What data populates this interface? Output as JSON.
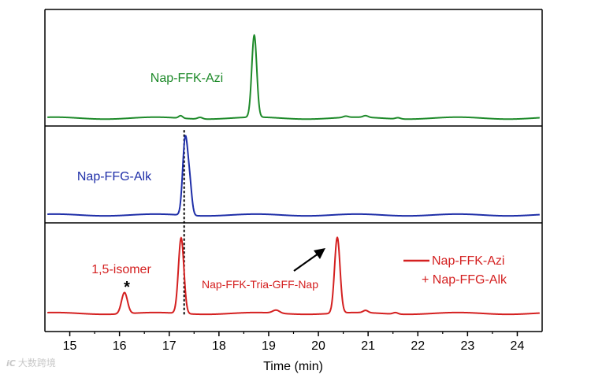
{
  "chart_data": {
    "type": "line",
    "title": "",
    "xlabel": "Time (min)",
    "ylabel": "",
    "xlim": [
      14.5,
      24.5
    ],
    "xticks": [
      "15",
      "16",
      "17",
      "18",
      "19",
      "20",
      "21",
      "22",
      "23",
      "24"
    ],
    "series": [
      {
        "name": "Nap-FFK-Azi",
        "label": "Nap-FFK-Azi",
        "color": "#1e8a2a",
        "panel": "top",
        "baseline": 0.0,
        "peaks": [
          {
            "x": 18.71,
            "height": 1.0,
            "width": 0.05
          },
          {
            "x": 17.23,
            "height": 0.03,
            "width": 0.04
          },
          {
            "x": 17.62,
            "height": 0.02,
            "width": 0.05
          },
          {
            "x": 20.55,
            "height": 0.015,
            "width": 0.05
          },
          {
            "x": 20.95,
            "height": 0.02,
            "width": 0.05
          },
          {
            "x": 21.6,
            "height": 0.015,
            "width": 0.05
          }
        ]
      },
      {
        "name": "Nap-FFG-Alk",
        "label": "Nap-FFG-Alk",
        "color": "#1f2fa8",
        "panel": "middle",
        "baseline": 0.0,
        "peaks": [
          {
            "x": 17.32,
            "height": 1.0,
            "width": 0.05
          },
          {
            "x": 17.41,
            "height": 0.4,
            "width": 0.045
          }
        ]
      },
      {
        "name": "Nap-FFK-Azi + Nap-FFG-Alk",
        "label": "Nap-FFK-Tria-GFF-Nap",
        "color": "#d42020",
        "panel": "bottom",
        "baseline": 0.0,
        "peaks": [
          {
            "x": 16.1,
            "height": 0.28,
            "width": 0.06
          },
          {
            "x": 17.24,
            "height": 1.0,
            "width": 0.055
          },
          {
            "x": 19.15,
            "height": 0.04,
            "width": 0.07
          },
          {
            "x": 20.38,
            "height": 1.0,
            "width": 0.055
          },
          {
            "x": 20.95,
            "height": 0.03,
            "width": 0.05
          },
          {
            "x": 21.55,
            "height": 0.02,
            "width": 0.05
          }
        ]
      }
    ],
    "annotations": {
      "isomer_label": "1,5-isomer",
      "isomer_star": "*",
      "product_label": "Nap-FFK-Tria-GFF-Nap",
      "reference_line_x": 17.3
    },
    "legend": {
      "position": "bottom-right",
      "line1": "Nap-FFK-Azi",
      "line2": "+ Nap-FFG-Alk"
    }
  },
  "watermark": {
    "badge": "iC",
    "text": "大数跨境"
  }
}
